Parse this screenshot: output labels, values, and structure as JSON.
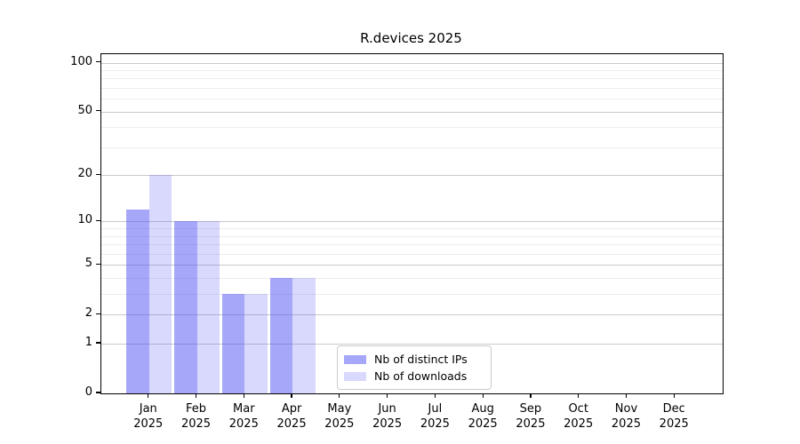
{
  "chart_data": {
    "type": "bar",
    "title": "R.devices 2025",
    "categories": [
      "Jan",
      "Feb",
      "Mar",
      "Apr",
      "May",
      "Jun",
      "Jul",
      "Aug",
      "Sep",
      "Oct",
      "Nov",
      "Dec"
    ],
    "category_year": "2025",
    "series": [
      {
        "name": "Nb of distinct IPs",
        "color": "rgba(80,80,245,0.5)",
        "values": [
          12,
          10,
          3,
          4,
          0,
          0,
          0,
          0,
          0,
          0,
          0,
          0
        ]
      },
      {
        "name": "Nb of downloads",
        "color": "rgba(80,80,245,0.22)",
        "values": [
          20,
          10,
          3,
          4,
          0,
          0,
          0,
          0,
          0,
          0,
          0,
          0
        ]
      }
    ],
    "y_axis": {
      "scale": "log1p",
      "tick_labels": [
        0,
        1,
        2,
        5,
        10,
        20,
        50,
        100
      ],
      "major_gridlines": [
        1,
        2,
        5,
        10,
        20,
        50,
        100
      ],
      "minor_gridlines": [
        3,
        4,
        6,
        7,
        8,
        9,
        30,
        40,
        60,
        70,
        80,
        90
      ],
      "ylim": [
        0,
        114
      ]
    },
    "xlabel": "",
    "ylabel": "",
    "grid": true,
    "legend_position": "lower center"
  },
  "colors": {
    "major_grid": "#c9c9c9",
    "minor_grid": "#ededed",
    "spine": "#000000",
    "background": "#ffffff"
  }
}
